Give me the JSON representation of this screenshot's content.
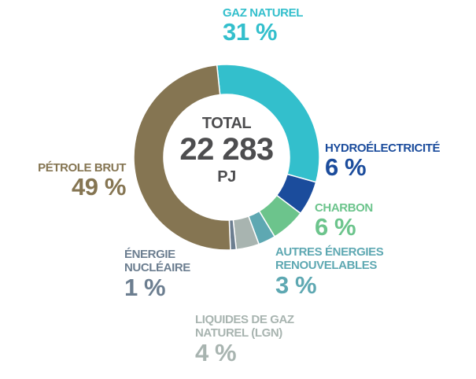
{
  "chart_data": {
    "type": "donut",
    "categories": [
      "GAZ NATUREL",
      "HYDROÉLECTRICITÉ",
      "CHARBON",
      "AUTRES ÉNERGIES RENOUVELABLES",
      "LIQUIDES DE GAZ NATUREL (LGN)",
      "ÉNERGIE NUCLÉAIRE",
      "PÉTROLE BRUT"
    ],
    "values": [
      31,
      6,
      6,
      3,
      4,
      1,
      49
    ],
    "value_labels": [
      "31 %",
      "6 %",
      "6 %",
      "3 %",
      "4 %",
      "1 %",
      "49 %"
    ],
    "colors": [
      "#33bfcc",
      "#1b4c9c",
      "#6cc48c",
      "#5ea8b2",
      "#a8b4b0",
      "#6c7e90",
      "#857552"
    ],
    "annotations": [
      "TOTAL",
      "22 283",
      "PJ"
    ]
  }
}
